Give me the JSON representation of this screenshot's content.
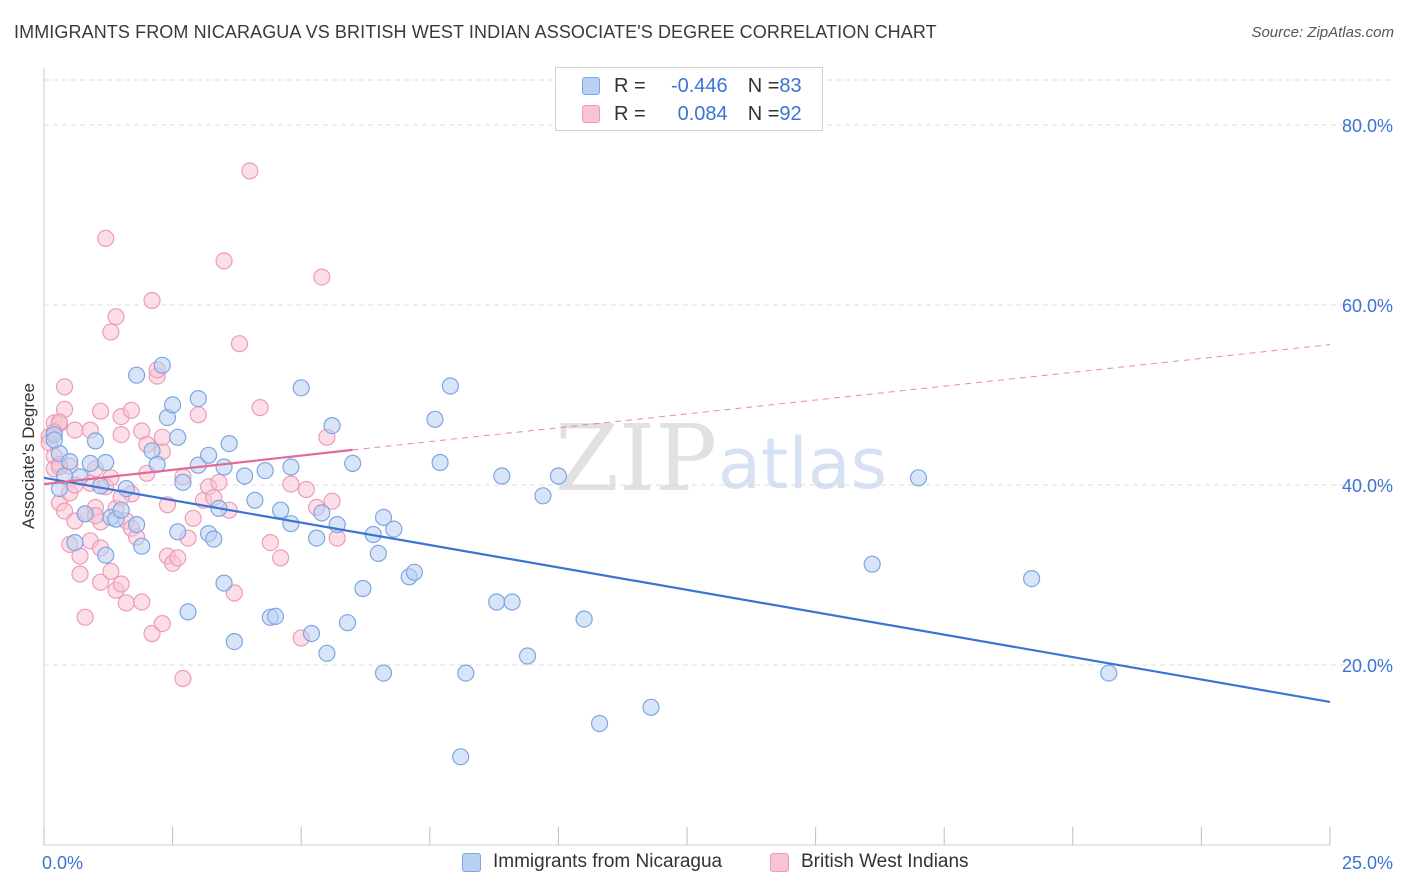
{
  "title": "IMMIGRANTS FROM NICARAGUA VS BRITISH WEST INDIAN ASSOCIATE'S DEGREE CORRELATION CHART",
  "source": "Source: ZipAtlas.com",
  "watermark": {
    "zip": "ZIP",
    "atlas": "atlas"
  },
  "colors": {
    "blue": "#3a74d4",
    "blue_fill": "#b8d0f2",
    "blue_stroke": "#7ea6e3",
    "pink": "#e46a95",
    "pink_fill": "#f8c3d4",
    "pink_stroke": "#ee9bb8",
    "grid": "#dedede",
    "axis_text": "#3a74d4"
  },
  "legend": {
    "rows": [
      {
        "r_label": "R = ",
        "r_value": "-0.446",
        "n_label": "N = ",
        "n_value": "83"
      },
      {
        "r_label": "R = ",
        "r_value": "0.084",
        "n_label": "N = ",
        "n_value": "92"
      }
    ]
  },
  "chart_data": {
    "type": "scatter",
    "ylabel": "Associate's Degree",
    "xlim": [
      0,
      25
    ],
    "ylim": [
      0,
      85
    ],
    "x_tick_labels": [
      "0.0%",
      "25.0%"
    ],
    "y_ticks": [
      20,
      40,
      60,
      80
    ],
    "y_tick_labels": [
      "20.0%",
      "40.0%",
      "60.0%",
      "80.0%"
    ],
    "grid": "horizontal dashed",
    "series": [
      {
        "name": "Immigrants from Nicaragua",
        "color": "blue",
        "trend": {
          "x": [
            0,
            25
          ],
          "y": [
            40.8,
            15.9
          ],
          "style": "solid"
        },
        "points": [
          [
            0.2,
            45.6
          ],
          [
            0.3,
            39.6
          ],
          [
            0.3,
            43.5
          ],
          [
            0.4,
            41.0
          ],
          [
            0.5,
            42.6
          ],
          [
            0.6,
            33.6
          ],
          [
            0.7,
            40.9
          ],
          [
            0.8,
            36.8
          ],
          [
            0.9,
            42.4
          ],
          [
            1.0,
            44.9
          ],
          [
            1.1,
            39.9
          ],
          [
            1.2,
            42.5
          ],
          [
            1.2,
            32.2
          ],
          [
            1.3,
            36.4
          ],
          [
            1.4,
            36.2
          ],
          [
            1.5,
            37.2
          ],
          [
            1.6,
            39.6
          ],
          [
            1.8,
            35.6
          ],
          [
            1.9,
            33.2
          ],
          [
            1.8,
            52.2
          ],
          [
            2.1,
            43.8
          ],
          [
            2.2,
            42.3
          ],
          [
            2.3,
            53.3
          ],
          [
            2.4,
            47.5
          ],
          [
            2.5,
            48.9
          ],
          [
            2.6,
            34.8
          ],
          [
            2.6,
            45.3
          ],
          [
            2.7,
            40.3
          ],
          [
            2.8,
            25.9
          ],
          [
            3.0,
            49.6
          ],
          [
            3.0,
            42.2
          ],
          [
            3.2,
            34.6
          ],
          [
            3.2,
            43.3
          ],
          [
            3.3,
            34.0
          ],
          [
            3.4,
            37.4
          ],
          [
            3.5,
            29.1
          ],
          [
            3.5,
            42.0
          ],
          [
            3.6,
            44.6
          ],
          [
            3.7,
            22.6
          ],
          [
            3.9,
            41.0
          ],
          [
            4.1,
            38.3
          ],
          [
            4.3,
            41.6
          ],
          [
            4.4,
            25.3
          ],
          [
            4.5,
            25.4
          ],
          [
            4.6,
            37.2
          ],
          [
            4.8,
            42.0
          ],
          [
            4.8,
            35.7
          ],
          [
            5.0,
            50.8
          ],
          [
            5.2,
            23.5
          ],
          [
            5.3,
            34.1
          ],
          [
            5.4,
            36.9
          ],
          [
            5.5,
            21.3
          ],
          [
            5.6,
            46.6
          ],
          [
            5.7,
            35.6
          ],
          [
            5.9,
            24.7
          ],
          [
            6.0,
            42.4
          ],
          [
            6.2,
            28.5
          ],
          [
            6.4,
            34.5
          ],
          [
            6.5,
            32.4
          ],
          [
            6.6,
            36.4
          ],
          [
            6.6,
            19.1
          ],
          [
            6.8,
            35.1
          ],
          [
            7.1,
            29.8
          ],
          [
            7.2,
            30.3
          ],
          [
            7.6,
            47.3
          ],
          [
            7.7,
            42.5
          ],
          [
            7.9,
            51.0
          ],
          [
            8.1,
            9.8
          ],
          [
            8.2,
            19.1
          ],
          [
            8.8,
            27.0
          ],
          [
            8.9,
            41.0
          ],
          [
            9.1,
            27.0
          ],
          [
            9.4,
            21.0
          ],
          [
            9.7,
            38.8
          ],
          [
            10.0,
            41.0
          ],
          [
            10.5,
            25.1
          ],
          [
            10.8,
            13.5
          ],
          [
            11.8,
            15.3
          ],
          [
            16.1,
            31.2
          ],
          [
            17.0,
            40.8
          ],
          [
            19.2,
            29.6
          ],
          [
            20.7,
            19.1
          ],
          [
            0.2,
            45.0
          ]
        ]
      },
      {
        "name": "British West Indians",
        "color": "pink",
        "trend": {
          "x": [
            0,
            6.0,
            25
          ],
          "y": [
            40.1,
            43.9,
            55.6
          ],
          "style": "solid-then-dashed"
        },
        "points": [
          [
            0.1,
            45.4
          ],
          [
            0.1,
            44.7
          ],
          [
            0.2,
            46.9
          ],
          [
            0.2,
            43.2
          ],
          [
            0.2,
            41.8
          ],
          [
            0.3,
            42.3
          ],
          [
            0.3,
            46.8
          ],
          [
            0.3,
            38.0
          ],
          [
            0.4,
            50.9
          ],
          [
            0.4,
            48.4
          ],
          [
            0.4,
            37.1
          ],
          [
            0.5,
            33.4
          ],
          [
            0.5,
            42.1
          ],
          [
            0.5,
            39.1
          ],
          [
            0.6,
            46.1
          ],
          [
            0.6,
            36.0
          ],
          [
            0.7,
            32.1
          ],
          [
            0.7,
            30.1
          ],
          [
            0.8,
            25.3
          ],
          [
            0.8,
            36.8
          ],
          [
            0.9,
            46.1
          ],
          [
            0.9,
            33.8
          ],
          [
            0.9,
            40.2
          ],
          [
            1.0,
            37.5
          ],
          [
            1.0,
            41.8
          ],
          [
            1.1,
            35.9
          ],
          [
            1.1,
            33.0
          ],
          [
            1.1,
            29.2
          ],
          [
            1.1,
            48.2
          ],
          [
            1.2,
            39.8
          ],
          [
            1.2,
            67.4
          ],
          [
            1.3,
            40.8
          ],
          [
            1.3,
            30.4
          ],
          [
            1.3,
            57.0
          ],
          [
            1.4,
            58.7
          ],
          [
            1.4,
            37.4
          ],
          [
            1.4,
            28.3
          ],
          [
            1.5,
            45.6
          ],
          [
            1.5,
            47.6
          ],
          [
            1.5,
            29.0
          ],
          [
            1.6,
            36.0
          ],
          [
            1.6,
            26.9
          ],
          [
            1.7,
            48.3
          ],
          [
            1.7,
            35.2
          ],
          [
            1.7,
            39.0
          ],
          [
            1.8,
            34.2
          ],
          [
            1.9,
            27.0
          ],
          [
            1.9,
            46.0
          ],
          [
            2.0,
            44.5
          ],
          [
            2.0,
            41.3
          ],
          [
            2.1,
            60.5
          ],
          [
            2.1,
            23.5
          ],
          [
            2.2,
            52.1
          ],
          [
            2.2,
            52.8
          ],
          [
            2.3,
            43.7
          ],
          [
            2.3,
            45.3
          ],
          [
            2.3,
            24.6
          ],
          [
            2.4,
            32.1
          ],
          [
            2.4,
            37.8
          ],
          [
            2.5,
            31.3
          ],
          [
            2.6,
            31.9
          ],
          [
            2.7,
            40.9
          ],
          [
            2.7,
            18.5
          ],
          [
            2.8,
            34.1
          ],
          [
            3.0,
            47.8
          ],
          [
            3.1,
            38.3
          ],
          [
            3.2,
            39.8
          ],
          [
            3.3,
            38.6
          ],
          [
            3.4,
            40.3
          ],
          [
            3.5,
            64.9
          ],
          [
            3.6,
            37.2
          ],
          [
            3.8,
            55.7
          ],
          [
            4.0,
            74.9
          ],
          [
            4.2,
            48.6
          ],
          [
            4.4,
            33.6
          ],
          [
            4.6,
            31.9
          ],
          [
            4.8,
            40.1
          ],
          [
            5.0,
            23.0
          ],
          [
            5.1,
            39.5
          ],
          [
            5.3,
            37.5
          ],
          [
            5.4,
            63.1
          ],
          [
            5.5,
            45.3
          ],
          [
            5.6,
            38.2
          ],
          [
            5.7,
            34.1
          ],
          [
            0.3,
            47.0
          ],
          [
            0.6,
            40.0
          ],
          [
            1.0,
            36.6
          ],
          [
            1.5,
            38.6
          ],
          [
            0.2,
            45.9
          ],
          [
            0.3,
            42.0
          ],
          [
            2.9,
            36.3
          ],
          [
            3.7,
            28.0
          ]
        ]
      }
    ]
  },
  "bottom_legend": [
    {
      "label": "Immigrants from Nicaragua",
      "color": "blue"
    },
    {
      "label": "British West Indians",
      "color": "pink"
    }
  ]
}
